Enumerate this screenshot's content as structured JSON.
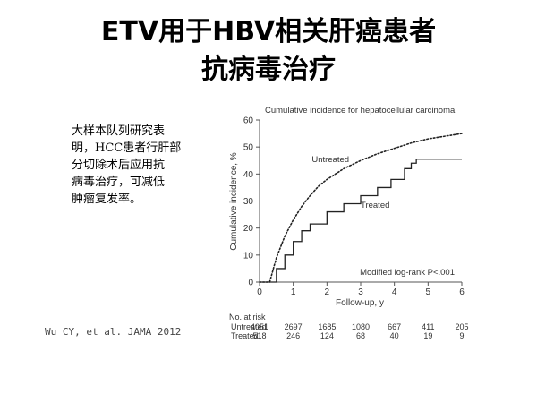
{
  "slide": {
    "title_line1": "ETV用于HBV相关肝癌患者",
    "title_line2": "抗病毒治疗",
    "description_lines": [
      "大样本队列研究表",
      "明，HCC患者行肝部",
      "分切除术后应用抗",
      "病毒治疗，可减低",
      "肿瘤复发率。"
    ],
    "citation": "Wu CY, et al. JAMA 2012"
  },
  "chart_data": {
    "type": "line",
    "title": "Cumulative incidence for hepatocellular carcinoma",
    "xlabel": "Follow-up, y",
    "ylabel": "Cumulative incidence, %",
    "xlim": [
      0,
      6
    ],
    "ylim": [
      0,
      60
    ],
    "xticks": [
      0,
      1,
      2,
      3,
      4,
      5,
      6
    ],
    "yticks": [
      0,
      10,
      20,
      30,
      40,
      50,
      60
    ],
    "grid": false,
    "annotation": "Modified log-rank P<.001",
    "series": [
      {
        "name": "Untreated",
        "style": "dotted",
        "x": [
          0,
          0.3,
          0.5,
          0.75,
          1.0,
          1.25,
          1.5,
          1.75,
          2.0,
          2.5,
          3.0,
          3.5,
          4.0,
          4.5,
          5.0,
          5.5,
          6.0
        ],
        "y": [
          0,
          0,
          9,
          17,
          23,
          28,
          32,
          35.5,
          38,
          42,
          45,
          47.5,
          49.5,
          51.5,
          53,
          54,
          55
        ]
      },
      {
        "name": "Treated",
        "style": "step",
        "x": [
          0,
          0.35,
          0.5,
          0.75,
          1.0,
          1.25,
          1.5,
          2.0,
          2.5,
          3.0,
          3.5,
          3.9,
          4.3,
          4.5,
          4.65,
          4.7,
          6.0
        ],
        "y": [
          0,
          0,
          5,
          10,
          15,
          19,
          21.5,
          26,
          29,
          32,
          35,
          38,
          42,
          44,
          45.5,
          45.5,
          45.5
        ]
      }
    ],
    "at_risk": {
      "header": "No. at risk",
      "rows": [
        {
          "label": "Untreated",
          "values": [
            "4051",
            "2697",
            "1685",
            "1080",
            "667",
            "411",
            "205"
          ]
        },
        {
          "label": "Treated",
          "values": [
            "518",
            "246",
            "124",
            "68",
            "40",
            "19",
            "9"
          ]
        }
      ]
    }
  }
}
